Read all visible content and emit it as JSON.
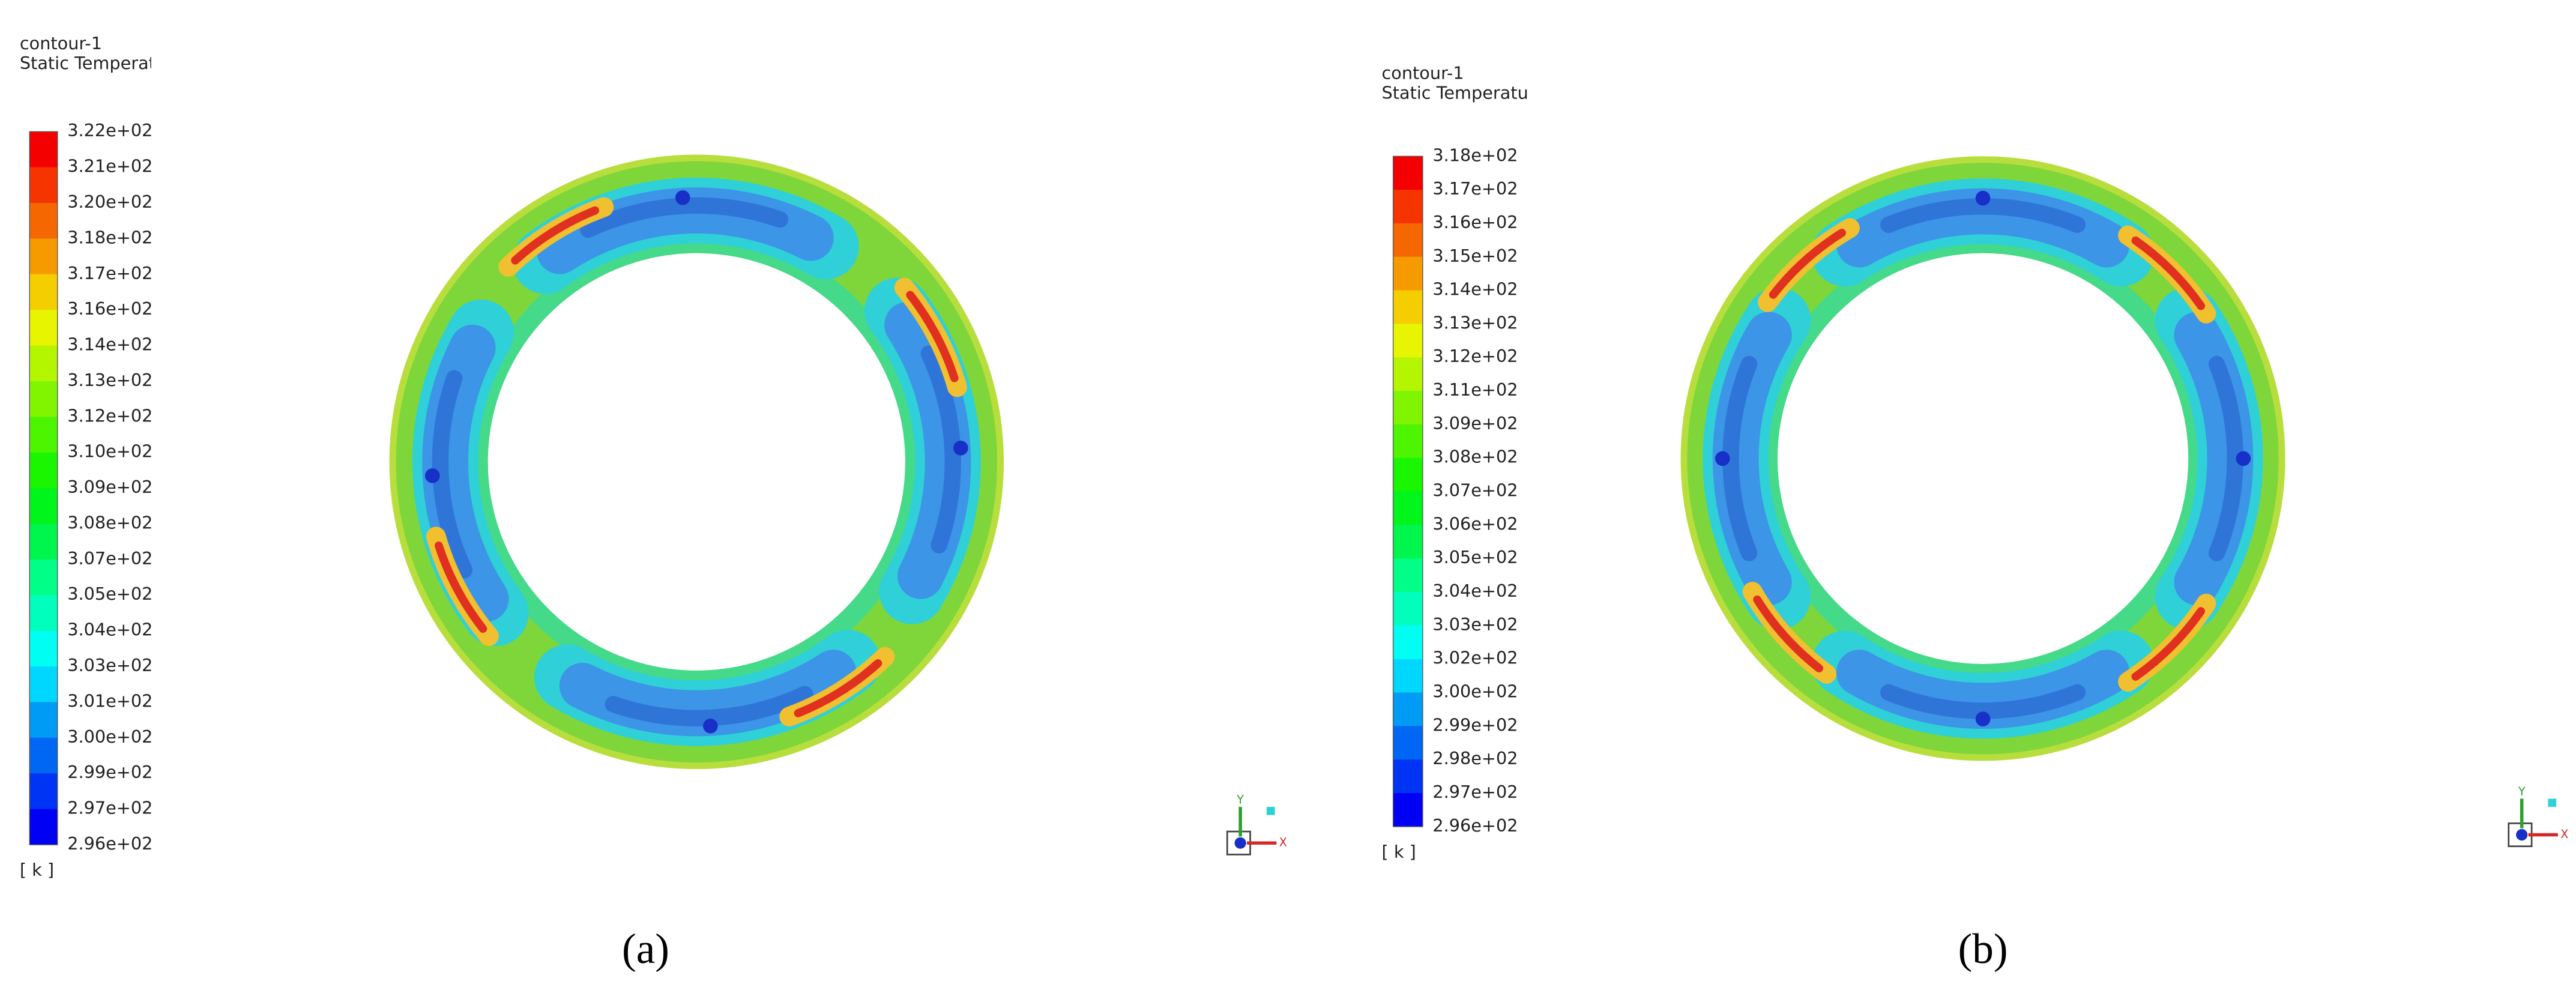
{
  "panels": [
    {
      "title": "contour-1",
      "variable": "Static Temperatu",
      "legend_labels": [
        "3.22e+02",
        "3.21e+02",
        "3.20e+02",
        "3.18e+02",
        "3.17e+02",
        "3.16e+02",
        "3.14e+02",
        "3.13e+02",
        "3.12e+02",
        "3.10e+02",
        "3.09e+02",
        "3.08e+02",
        "3.07e+02",
        "3.05e+02",
        "3.04e+02",
        "3.03e+02",
        "3.01e+02",
        "3.00e+02",
        "2.99e+02",
        "2.97e+02",
        "2.96e+02"
      ],
      "unit": "[ k ]",
      "axis_labels": [
        "Y",
        "X"
      ],
      "caption": "(a)"
    },
    {
      "title": "contour-1",
      "variable": "Static Temperature",
      "legend_labels": [
        "3.18e+02",
        "3.17e+02",
        "3.16e+02",
        "3.15e+02",
        "3.14e+02",
        "3.13e+02",
        "3.12e+02",
        "3.11e+02",
        "3.09e+02",
        "3.08e+02",
        "3.07e+02",
        "3.06e+02",
        "3.05e+02",
        "3.04e+02",
        "3.03e+02",
        "3.02e+02",
        "3.00e+02",
        "2.99e+02",
        "2.98e+02",
        "2.97e+02",
        "2.96e+02"
      ],
      "unit": "[ k ]",
      "axis_labels": [
        "Y",
        "X"
      ],
      "caption": "(b)"
    }
  ]
}
